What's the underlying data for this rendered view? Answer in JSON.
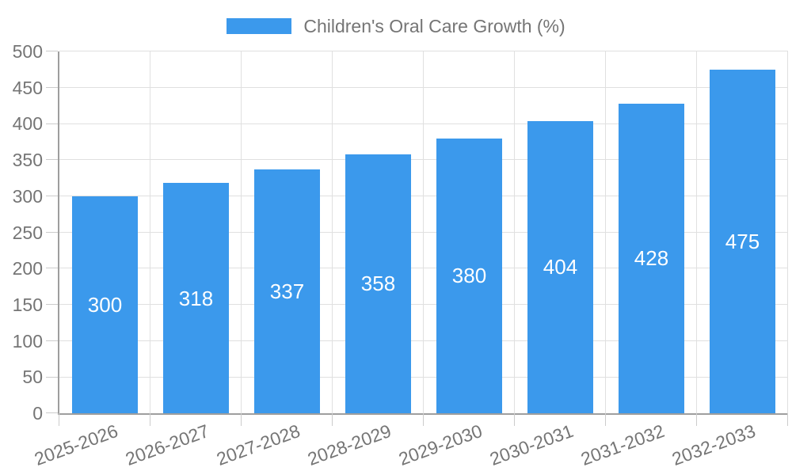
{
  "chart_data": {
    "type": "bar",
    "title": "Children's Oral Care Growth (%)",
    "categories": [
      "2025-2026",
      "2026-2027",
      "2027-2028",
      "2028-2029",
      "2029-2030",
      "2030-2031",
      "2031-2032",
      "2032-2033"
    ],
    "values": [
      300,
      318,
      337,
      358,
      380,
      404,
      428,
      475
    ],
    "ylim": [
      0,
      500
    ],
    "ytick_step": 50,
    "ytick_labels": [
      "0",
      "50",
      "100",
      "150",
      "200",
      "250",
      "300",
      "350",
      "400",
      "450",
      "500"
    ],
    "grid": "on",
    "legend_position": "top",
    "x_label_rotation_deg": -20,
    "value_labels_inside_bars": true
  },
  "colors": {
    "bar": "#3b99ec",
    "bar_value_text": "#ffffff",
    "axis_text": "#757575",
    "legend_text": "#757575",
    "gridline": "#e0e0e0",
    "axis_line": "#9e9e9e",
    "tick": "#cccccc"
  }
}
